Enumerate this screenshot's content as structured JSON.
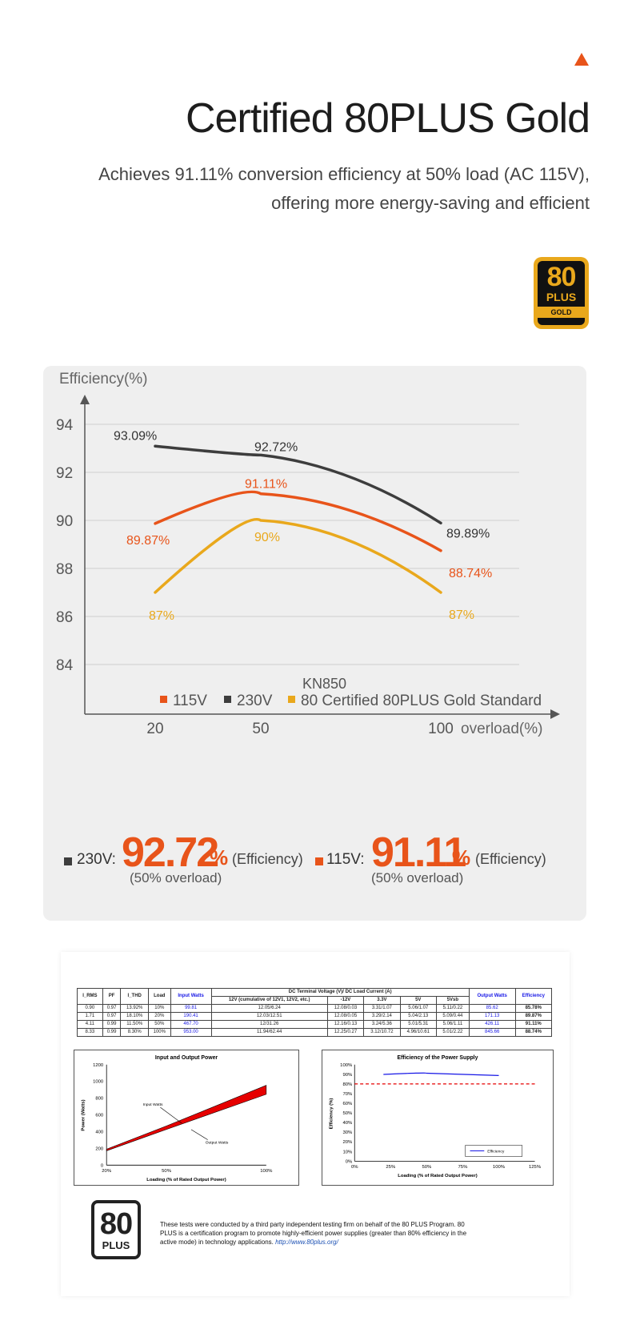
{
  "header": {
    "title": "Certified 80PLUS Gold",
    "subtitle_line1": "Achieves 91.11% conversion efficiency at 50% load (AC 115V),",
    "subtitle_line2": "offering more energy-saving and efficient"
  },
  "badge": {
    "number": "80",
    "plus": "PLUS",
    "tier": "GOLD"
  },
  "colors": {
    "accent": "#e8541a",
    "series_115v": "#e8541a",
    "series_230v": "#3d3d3d",
    "series_std": "#e9a81c"
  },
  "chart_data": {
    "type": "line",
    "ylabel": "Efficiency(%)",
    "xlabel": "overload(%)",
    "subtitle": "KN850",
    "x": [
      20,
      50,
      100
    ],
    "x_ticks": [
      "20",
      "50",
      "100"
    ],
    "ylim": [
      83,
      95
    ],
    "y_ticks": [
      84,
      86,
      88,
      90,
      92,
      94
    ],
    "grid": true,
    "legend_position": "bottom",
    "series": [
      {
        "name": "230V",
        "values": [
          93.09,
          92.72,
          89.89
        ],
        "labels": [
          "93.09%",
          "92.72%",
          "89.89%"
        ]
      },
      {
        "name": "115V",
        "values": [
          89.87,
          91.11,
          88.74
        ],
        "labels": [
          "89.87%",
          "91.11%",
          "88.74%"
        ]
      },
      {
        "name": "80 Certified 80PLUS Gold Standard",
        "values": [
          87,
          90,
          87
        ],
        "labels": [
          "87%",
          "90%",
          "87%"
        ]
      }
    ]
  },
  "stats": [
    {
      "voltage": "230V",
      "value": "92.72",
      "unit": "%",
      "note": "(Efficiency)",
      "sub": "(50% overload)"
    },
    {
      "voltage": "115V",
      "value": "91.11",
      "unit": "%",
      "note": "(Efficiency)",
      "sub": "(50% overload)"
    }
  ],
  "report": {
    "table_headers": [
      "I_RMS",
      "PF",
      "I_THD",
      "Load",
      "Input Watts",
      "12V (cumulative of 12V1, 12V2, etc.)",
      "-12V",
      "3.3V",
      "5V",
      "5Vsb",
      "Output Watts",
      "Efficiency"
    ],
    "table_group_header": "DC Terminal Voltage (V)/ DC Load Current (A)",
    "rows": [
      [
        "0.90",
        "0.97",
        "13.92%",
        "10%",
        "99.81",
        "12.05/6.24",
        "12.08/0.03",
        "3.31/1.07",
        "5.06/1.07",
        "5.11/0.22",
        "85.62",
        "85.78%"
      ],
      [
        "1.71",
        "0.97",
        "18.10%",
        "20%",
        "190.41",
        "12.03/12.51",
        "12.08/0.05",
        "3.29/2.14",
        "5.04/2.13",
        "5.09/0.44",
        "171.13",
        "89.87%"
      ],
      [
        "4.11",
        "0.99",
        "11.50%",
        "50%",
        "467.70",
        "12/31.26",
        "12.16/0.13",
        "3.24/5.36",
        "5.01/5.31",
        "5.06/1.11",
        "426.11",
        "91.11%"
      ],
      [
        "8.33",
        "0.99",
        "8.30%",
        "100%",
        "953.00",
        "11.94/62.44",
        "12.25/0.27",
        "3.12/10.72",
        "4.96/10.61",
        "5.01/2.22",
        "845.66",
        "88.74%"
      ]
    ],
    "power_chart": {
      "title": "Input and Output Power",
      "ylabel": "Power (Watts)",
      "xlabel": "Loading (% of Rated Output Power)",
      "y_ticks": [
        "0",
        "200",
        "400",
        "600",
        "800",
        "1000",
        "1200"
      ],
      "x_ticks": [
        "20%",
        "50%",
        "100%"
      ],
      "x": [
        20,
        50,
        100
      ],
      "input": [
        190.41,
        467.7,
        953.0
      ],
      "output": [
        171.13,
        426.11,
        845.66
      ],
      "annot_input": "Input Watts",
      "annot_output": "Output Watts"
    },
    "eff_chart": {
      "title": "Efficiency of the Power Supply",
      "ylabel": "Efficiency (%)",
      "xlabel": "Loading (% of Rated Output Power)",
      "y_ticks": [
        "0%",
        "10%",
        "20%",
        "30%",
        "40%",
        "50%",
        "60%",
        "70%",
        "80%",
        "90%",
        "100%"
      ],
      "x_ticks": [
        "0%",
        "25%",
        "50%",
        "75%",
        "100%",
        "125%"
      ],
      "x": [
        20,
        50,
        100
      ],
      "values": [
        89.87,
        91.11,
        88.74
      ],
      "threshold": 80,
      "legend": "Efficiency"
    },
    "logo_number": "80",
    "logo_plus": "PLUS",
    "note_text": "These tests were conducted by a third party independent testing firm on behalf of the 80 PLUS Program. 80 PLUS is a certification program to promote highly-efficient power supplies (greater than 80% efficiency in the active mode) in technology applications.",
    "note_link": "http://www.80plus.org/"
  }
}
